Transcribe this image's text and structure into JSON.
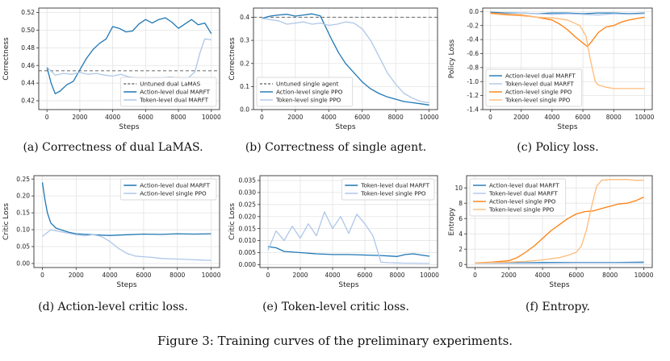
{
  "figure_caption": "Figure 3: Training curves of the preliminary experiments.",
  "chart_data": [
    {
      "id": "a",
      "type": "line",
      "caption": "(a) Correctness of dual LaMAS.",
      "xlabel": "Steps",
      "ylabel": "Correctness",
      "xlim": [
        -500,
        10500
      ],
      "ylim": [
        0.41,
        0.525
      ],
      "xticks": [
        0,
        2000,
        4000,
        6000,
        8000,
        10000
      ],
      "yticks": [
        0.42,
        0.44,
        0.46,
        0.48,
        0.5,
        0.52
      ],
      "tick_decimals": 2,
      "grid": true,
      "legend_position": "lower-right",
      "reference": {
        "name": "Untuned dual LaMAS",
        "y": 0.454,
        "color": "#777777"
      },
      "series": [
        {
          "name": "Action-level dual MARFT",
          "color": "#1f77b4",
          "x": [
            0,
            250,
            500,
            800,
            1200,
            1600,
            2000,
            2400,
            2800,
            3200,
            3600,
            4000,
            4400,
            4800,
            5200,
            5600,
            6000,
            6400,
            6800,
            7200,
            7600,
            8000,
            8400,
            8800,
            9200,
            9600,
            10000
          ],
          "y": [
            0.458,
            0.44,
            0.428,
            0.431,
            0.438,
            0.442,
            0.455,
            0.468,
            0.478,
            0.485,
            0.49,
            0.504,
            0.502,
            0.498,
            0.499,
            0.507,
            0.512,
            0.508,
            0.512,
            0.514,
            0.509,
            0.502,
            0.507,
            0.512,
            0.506,
            0.508,
            0.496
          ]
        },
        {
          "name": "Token-level dual MARFT",
          "color": "#aec7e8",
          "x": [
            0,
            500,
            1000,
            1500,
            2000,
            2500,
            3000,
            3500,
            4000,
            4500,
            5000,
            5500,
            6000,
            6500,
            7000,
            7500,
            8000,
            8500,
            9000,
            9300,
            9600,
            10000
          ],
          "y": [
            0.458,
            0.449,
            0.451,
            0.45,
            0.452,
            0.45,
            0.451,
            0.449,
            0.448,
            0.45,
            0.447,
            0.446,
            0.445,
            0.446,
            0.446,
            0.447,
            0.446,
            0.444,
            0.453,
            0.474,
            0.49,
            0.489
          ]
        }
      ]
    },
    {
      "id": "b",
      "type": "line",
      "caption": "(b) Correctness of single agent.",
      "xlabel": "Steps",
      "ylabel": "Correctness",
      "xlim": [
        -500,
        10500
      ],
      "ylim": [
        0.0,
        0.44
      ],
      "xticks": [
        0,
        2000,
        4000,
        6000,
        8000,
        10000
      ],
      "yticks": [
        0.0,
        0.1,
        0.2,
        0.3,
        0.4
      ],
      "tick_decimals": 1,
      "grid": true,
      "legend_position": "lower-left",
      "reference": {
        "name": "Untuned single agent",
        "y": 0.4,
        "color": "#777777"
      },
      "series": [
        {
          "name": "Action-level single PPO",
          "color": "#1f77b4",
          "x": [
            0,
            500,
            1000,
            1500,
            2000,
            2500,
            3000,
            3500,
            3800,
            4200,
            4600,
            5000,
            5500,
            6000,
            6500,
            7000,
            7500,
            8000,
            8500,
            9000,
            9500,
            10000
          ],
          "y": [
            0.395,
            0.405,
            0.41,
            0.413,
            0.405,
            0.41,
            0.415,
            0.406,
            0.36,
            0.3,
            0.245,
            0.2,
            0.16,
            0.12,
            0.09,
            0.07,
            0.055,
            0.045,
            0.035,
            0.03,
            0.025,
            0.02
          ]
        },
        {
          "name": "Token-level single PPO",
          "color": "#aec7e8",
          "x": [
            0,
            500,
            1000,
            1500,
            2000,
            2500,
            3000,
            3500,
            4000,
            4500,
            5000,
            5500,
            6000,
            6500,
            7000,
            7500,
            8000,
            8500,
            9000,
            9500,
            10000
          ],
          "y": [
            0.395,
            0.39,
            0.385,
            0.37,
            0.375,
            0.38,
            0.37,
            0.375,
            0.365,
            0.37,
            0.38,
            0.375,
            0.35,
            0.3,
            0.23,
            0.16,
            0.11,
            0.07,
            0.05,
            0.035,
            0.03
          ]
        }
      ]
    },
    {
      "id": "c",
      "type": "line",
      "caption": "(c) Policy loss.",
      "xlabel": "Steps",
      "ylabel": "Policy Loss",
      "xlim": [
        -500,
        10500
      ],
      "ylim": [
        -1.4,
        0.05
      ],
      "xticks": [
        0,
        2000,
        4000,
        6000,
        8000,
        10000
      ],
      "yticks": [
        -1.4,
        -1.2,
        -1.0,
        -0.8,
        -0.6,
        -0.4,
        -0.2,
        0.0
      ],
      "tick_decimals": 1,
      "grid": true,
      "legend_position": "lower-left",
      "series": [
        {
          "name": "Action-level dual MARFT",
          "color": "#1f77b4",
          "x": [
            0,
            1000,
            2000,
            3000,
            4000,
            5000,
            6000,
            7000,
            8000,
            9000,
            10000
          ],
          "y": [
            -0.01,
            -0.02,
            -0.02,
            -0.03,
            -0.02,
            -0.02,
            -0.03,
            -0.02,
            -0.02,
            -0.03,
            -0.02
          ]
        },
        {
          "name": "Token-level dual MARFT",
          "color": "#aec7e8",
          "x": [
            0,
            1000,
            2000,
            3000,
            4000,
            5000,
            6000,
            7000,
            8000,
            9000,
            10000
          ],
          "y": [
            -0.02,
            -0.03,
            -0.02,
            -0.03,
            -0.04,
            -0.03,
            -0.04,
            -0.05,
            -0.03,
            -0.04,
            -0.03
          ]
        },
        {
          "name": "Action-level single PPO",
          "color": "#ff7f0e",
          "x": [
            0,
            1000,
            2000,
            3000,
            4000,
            4500,
            5000,
            5500,
            6000,
            6300,
            6600,
            7000,
            7500,
            8000,
            8500,
            9000,
            9500,
            10000
          ],
          "y": [
            -0.02,
            -0.04,
            -0.05,
            -0.08,
            -0.12,
            -0.18,
            -0.26,
            -0.36,
            -0.45,
            -0.5,
            -0.42,
            -0.3,
            -0.22,
            -0.2,
            -0.15,
            -0.12,
            -0.1,
            -0.08
          ]
        },
        {
          "name": "Token-level single PPO",
          "color": "#ffbb78",
          "x": [
            0,
            1000,
            2000,
            3000,
            4000,
            5000,
            5800,
            6200,
            6500,
            6800,
            7000,
            7500,
            8000,
            8500,
            9000,
            9500,
            10000
          ],
          "y": [
            -0.03,
            -0.05,
            -0.06,
            -0.08,
            -0.09,
            -0.12,
            -0.2,
            -0.35,
            -0.7,
            -1.0,
            -1.05,
            -1.08,
            -1.1,
            -1.1,
            -1.1,
            -1.1,
            -1.1
          ]
        }
      ]
    },
    {
      "id": "d",
      "type": "line",
      "caption": "(d) Action-level critic loss.",
      "xlabel": "Steps",
      "ylabel": "Critic Loss",
      "xlim": [
        -500,
        10500
      ],
      "ylim": [
        -0.012,
        0.26
      ],
      "xticks": [
        0,
        2000,
        4000,
        6000,
        8000,
        10000
      ],
      "yticks": [
        0.0,
        0.05,
        0.1,
        0.15,
        0.2,
        0.25
      ],
      "tick_decimals": 2,
      "grid": true,
      "legend_position": "top-right",
      "series": [
        {
          "name": "Action-level dual MARFT",
          "color": "#1f77b4",
          "x": [
            0,
            150,
            300,
            500,
            800,
            1200,
            1600,
            2000,
            3000,
            4000,
            5000,
            6000,
            7000,
            8000,
            9000,
            10000
          ],
          "y": [
            0.24,
            0.19,
            0.15,
            0.12,
            0.105,
            0.098,
            0.092,
            0.088,
            0.085,
            0.083,
            0.085,
            0.087,
            0.086,
            0.088,
            0.087,
            0.088
          ]
        },
        {
          "name": "Action-level single PPO",
          "color": "#aec7e8",
          "x": [
            0,
            500,
            1000,
            1500,
            2000,
            2500,
            3000,
            3500,
            4000,
            4500,
            5000,
            5500,
            6000,
            6500,
            7000,
            7500,
            8000,
            8500,
            9000,
            9500,
            10000
          ],
          "y": [
            0.08,
            0.1,
            0.095,
            0.09,
            0.085,
            0.082,
            0.085,
            0.08,
            0.065,
            0.045,
            0.03,
            0.022,
            0.02,
            0.018,
            0.015,
            0.014,
            0.013,
            0.012,
            0.011,
            0.01,
            0.009
          ]
        }
      ]
    },
    {
      "id": "e",
      "type": "line",
      "caption": "(e) Token-level critic loss.",
      "xlabel": "Steps",
      "ylabel": "Critic Loss",
      "xlim": [
        -500,
        10500
      ],
      "ylim": [
        -0.0012,
        0.037
      ],
      "xticks": [
        0,
        2000,
        4000,
        6000,
        8000,
        10000
      ],
      "yticks": [
        0.0,
        0.005,
        0.01,
        0.015,
        0.02,
        0.025,
        0.03,
        0.035
      ],
      "tick_decimals": 3,
      "grid": true,
      "legend_position": "top-right",
      "series": [
        {
          "name": "Token-level dual MARFT",
          "color": "#1f77b4",
          "x": [
            0,
            500,
            1000,
            2000,
            3000,
            4000,
            5000,
            6000,
            7000,
            7500,
            8000,
            8500,
            9000,
            9500,
            10000
          ],
          "y": [
            0.0075,
            0.007,
            0.0055,
            0.005,
            0.0045,
            0.0042,
            0.0042,
            0.004,
            0.0038,
            0.0036,
            0.0034,
            0.0042,
            0.0045,
            0.004,
            0.0035
          ]
        },
        {
          "name": "Token-level single PPO",
          "color": "#aec7e8",
          "x": [
            0,
            500,
            1000,
            1500,
            2000,
            2500,
            3000,
            3500,
            4000,
            4500,
            5000,
            5500,
            6000,
            6500,
            7000,
            7500,
            8000,
            8500,
            9000,
            9500,
            10000
          ],
          "y": [
            0.006,
            0.014,
            0.01,
            0.016,
            0.011,
            0.017,
            0.012,
            0.022,
            0.015,
            0.02,
            0.013,
            0.021,
            0.017,
            0.012,
            0.001,
            0.0008,
            0.0007,
            0.0006,
            0.0006,
            0.0005,
            0.0005
          ]
        }
      ]
    },
    {
      "id": "f",
      "type": "line",
      "caption": "(f) Entropy.",
      "xlabel": "Steps",
      "ylabel": "Entropy",
      "xlim": [
        -500,
        10500
      ],
      "ylim": [
        -0.4,
        11.6
      ],
      "xticks": [
        0,
        2000,
        4000,
        6000,
        8000,
        10000
      ],
      "yticks": [
        0,
        2,
        4,
        6,
        8,
        10
      ],
      "tick_decimals": 0,
      "grid": true,
      "legend_position": "top-left",
      "series": [
        {
          "name": "Action-level dual MARFT",
          "color": "#1f77b4",
          "x": [
            0,
            2000,
            4000,
            6000,
            8000,
            10000
          ],
          "y": [
            0.2,
            0.2,
            0.25,
            0.25,
            0.25,
            0.3
          ]
        },
        {
          "name": "Token-level dual MARFT",
          "color": "#aec7e8",
          "x": [
            0,
            2000,
            4000,
            6000,
            8000,
            10000
          ],
          "y": [
            0.15,
            0.15,
            0.15,
            0.2,
            0.2,
            0.2
          ]
        },
        {
          "name": "Action-level single PPO",
          "color": "#ff7f0e",
          "x": [
            0,
            1000,
            2000,
            2500,
            3000,
            3500,
            4000,
            4500,
            5000,
            5500,
            6000,
            6500,
            7000,
            7500,
            8000,
            8500,
            9000,
            9500,
            10000
          ],
          "y": [
            0.2,
            0.3,
            0.5,
            0.9,
            1.6,
            2.4,
            3.4,
            4.4,
            5.2,
            6.0,
            6.6,
            6.9,
            7.0,
            7.3,
            7.6,
            7.9,
            8.0,
            8.3,
            8.8
          ]
        },
        {
          "name": "Token-level single PPO",
          "color": "#ffbb78",
          "x": [
            0,
            1000,
            2000,
            3000,
            4000,
            5000,
            5500,
            6000,
            6300,
            6600,
            6900,
            7200,
            7500,
            8000,
            8500,
            9000,
            9500,
            10000
          ],
          "y": [
            0.2,
            0.25,
            0.3,
            0.4,
            0.6,
            0.9,
            1.2,
            1.6,
            2.4,
            4.5,
            7.5,
            10.2,
            11.0,
            11.1,
            11.1,
            11.1,
            11.0,
            11.0
          ]
        }
      ]
    }
  ]
}
